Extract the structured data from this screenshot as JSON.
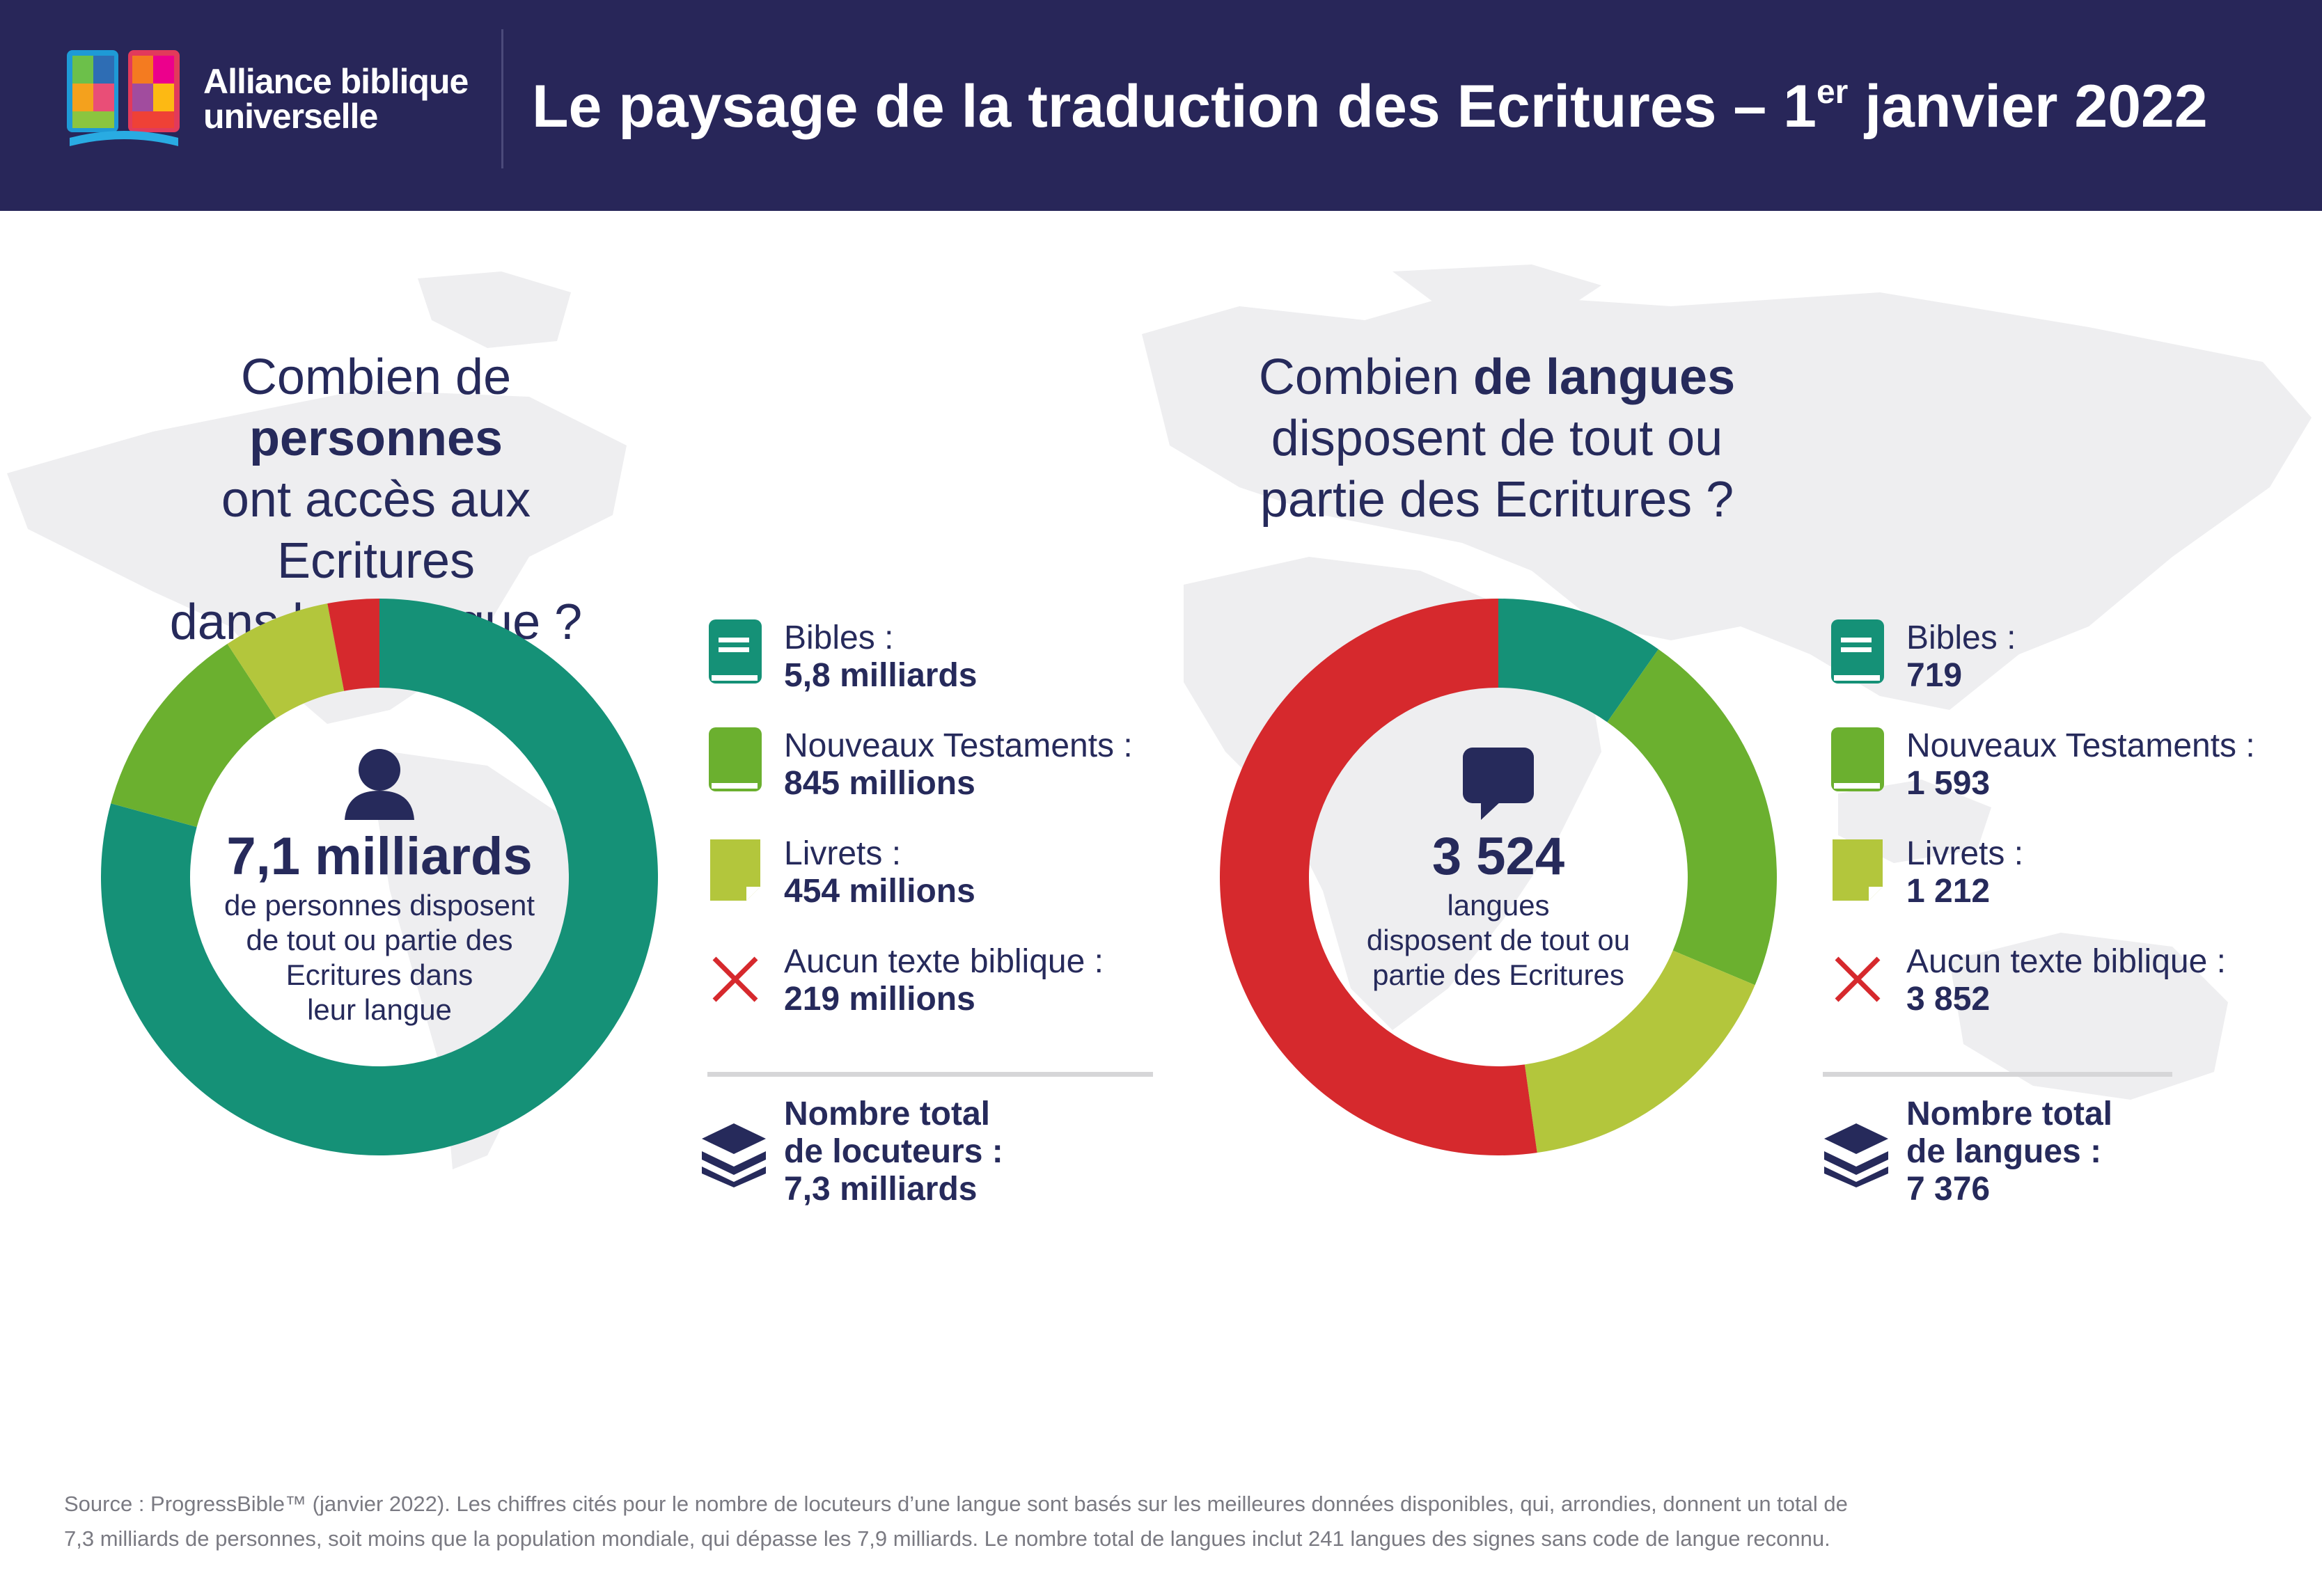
{
  "header": {
    "brand_line1": "Alliance biblique",
    "brand_line2": "universelle",
    "title_main": "Le paysage de la traduction des Ecritures – 1",
    "title_sup": "er",
    "title_end": " janvier 2022"
  },
  "colors": {
    "header_bg": "#282659",
    "bibles": "#159177",
    "nt": "#6bb02f",
    "livrets": "#b3c63c",
    "aucun": "#d6292d",
    "text": "#262a5b"
  },
  "left": {
    "question_pre": "Combien de ",
    "question_bold": "personnes",
    "question_line2": "ont accès aux Ecritures",
    "question_line3": "dans leur langue ?",
    "center_number": "7,1 milliards",
    "center_text_1": "de personnes disposent",
    "center_text_2": "de tout ou partie des",
    "center_text_3": "Ecritures dans",
    "center_text_4": "leur langue",
    "legend": [
      {
        "label": "Bibles :",
        "value": "5,8 milliards",
        "icon": "book-icon"
      },
      {
        "label": "Nouveaux Testaments :",
        "value": "845 millions",
        "icon": "book-icon"
      },
      {
        "label": "Livrets :",
        "value": "454 millions",
        "icon": "booklet-icon"
      },
      {
        "label": "Aucun texte biblique :",
        "value": "219 millions",
        "icon": "cross-icon"
      }
    ],
    "total_line1": "Nombre total",
    "total_line2": "de locuteurs :",
    "total_value": "7,3 milliards"
  },
  "right": {
    "question_pre": "Combien ",
    "question_bold": "de langues",
    "question_line2": "disposent de tout ou",
    "question_line3": "partie des Ecritures ?",
    "center_number": "3 524",
    "center_text_1": "langues",
    "center_text_2": "disposent de tout ou",
    "center_text_3": "partie des Ecritures",
    "legend": [
      {
        "label": "Bibles :",
        "value": "719",
        "icon": "book-icon"
      },
      {
        "label": "Nouveaux Testaments :",
        "value": "1 593",
        "icon": "book-icon"
      },
      {
        "label": "Livrets :",
        "value": "1 212",
        "icon": "booklet-icon"
      },
      {
        "label": "Aucun texte biblique :",
        "value": "3 852",
        "icon": "cross-icon"
      }
    ],
    "total_line1": "Nombre total",
    "total_line2": "de langues :",
    "total_value": "7 376"
  },
  "source": {
    "line1": "Source : ProgressBible™ (janvier 2022). Les chiffres cités pour le nombre de locuteurs d’une langue sont basés sur les meilleures données disponibles, qui, arrondies, donnent un total de",
    "line2": "7,3 milliards de personnes, soit moins que la population mondiale, qui dépasse les 7,9 milliards. Le nombre total de langues inclut 241 langues des signes sans code de langue reconnu."
  },
  "chart_data": [
    {
      "type": "pie",
      "categories": [
        "Bibles",
        "Nouveaux Testaments",
        "Livrets",
        "Aucun texte biblique"
      ],
      "values": [
        5800,
        845,
        454,
        219
      ],
      "colors": [
        "#159177",
        "#6bb02f",
        "#b3c63c",
        "#d6292d"
      ]
    },
    {
      "type": "pie",
      "categories": [
        "Bibles",
        "Nouveaux Testaments",
        "Livrets",
        "Aucun texte biblique"
      ],
      "values": [
        719,
        1593,
        1212,
        3852
      ],
      "colors": [
        "#159177",
        "#6bb02f",
        "#b3c63c",
        "#d6292d"
      ]
    }
  ]
}
